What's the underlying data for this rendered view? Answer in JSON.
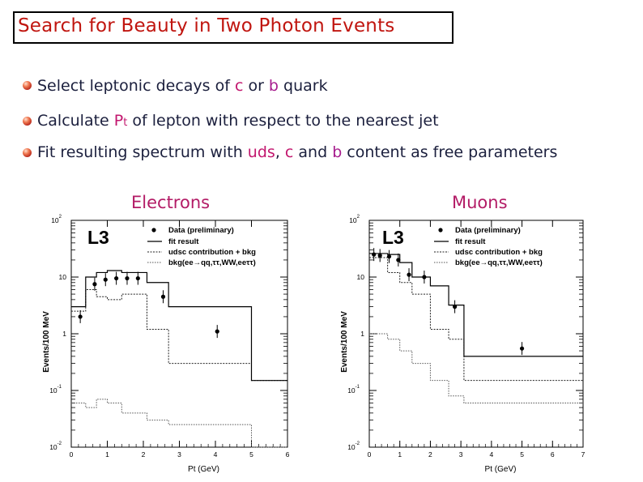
{
  "title": "Search for Beauty in Two Photon Events",
  "bullets": [
    {
      "pre": "Select leptonic decays of ",
      "h1": "c",
      "mid": " or ",
      "h2": "b",
      "post": " quark"
    },
    {
      "pre": "Calculate ",
      "h1": "P",
      "sub": "t",
      "post": " of lepton with respect to the nearest jet"
    },
    {
      "pre": "Fit resulting spectrum with ",
      "h1": "uds",
      "mid1": ", ",
      "h2": "c",
      "mid2": " and ",
      "h3": "b",
      "post": " content as free parameters"
    }
  ],
  "panels": {
    "electrons_label": "Electrons",
    "muons_label": "Muons"
  },
  "plot_text": {
    "logo": "L3",
    "legend_data": "Data (preliminary)",
    "legend_fit": "fit result",
    "legend_udsc": "udsc contribution + bkg",
    "legend_bkg": "bkg(ee→qq,ττ,WW,eeττ)",
    "ylabel": "Events/100 MeV",
    "xlabel": "Pt (GeV)",
    "ytick_labels": [
      "10^2",
      "10",
      "1",
      "10^-1",
      "10^-2"
    ]
  },
  "chart_data": [
    {
      "type": "histogram",
      "title": "Electrons",
      "xlabel": "Pt (GeV)",
      "ylabel": "Events/100 MeV",
      "log_y": true,
      "xlim": [
        0,
        6
      ],
      "ylim": [
        0.01,
        100
      ],
      "xticks": [
        0,
        1,
        2,
        3,
        4,
        5,
        6
      ],
      "data": {
        "x": [
          0.25,
          0.65,
          0.95,
          1.25,
          1.55,
          1.85,
          2.55,
          4.05
        ],
        "y": [
          2.0,
          7.5,
          9.0,
          9.5,
          9.5,
          9.5,
          4.5,
          1.1
        ]
      },
      "fit_result": {
        "edges": [
          0,
          0.4,
          0.7,
          1.0,
          1.4,
          2.1,
          2.7,
          5.0,
          6.0
        ],
        "values": [
          3.0,
          10.0,
          12.0,
          13.0,
          12.0,
          8.0,
          3.0,
          0.15
        ]
      },
      "udsc_bkg": {
        "edges": [
          0,
          0.4,
          0.7,
          1.0,
          1.4,
          2.1,
          2.7,
          5.0,
          6.0
        ],
        "values": [
          2.5,
          6.0,
          4.5,
          4.0,
          5.0,
          1.2,
          0.3,
          0.15
        ]
      },
      "bkg": {
        "edges": [
          0,
          0.4,
          0.7,
          1.0,
          1.4,
          2.1,
          2.7,
          5.0,
          6.0
        ],
        "values": [
          0.06,
          0.05,
          0.07,
          0.06,
          0.04,
          0.03,
          0.025,
          0.01
        ]
      }
    },
    {
      "type": "histogram",
      "title": "Muons",
      "xlabel": "Pt (GeV)",
      "ylabel": "Events/100 MeV",
      "log_y": true,
      "xlim": [
        0,
        7
      ],
      "ylim": [
        0.01,
        100
      ],
      "xticks": [
        0,
        1,
        2,
        3,
        4,
        5,
        6,
        7
      ],
      "data": {
        "x": [
          0.15,
          0.35,
          0.65,
          0.95,
          1.3,
          1.8,
          2.8,
          5.0
        ],
        "y": [
          25,
          24,
          23,
          20,
          11,
          10,
          3.0,
          0.55
        ]
      },
      "fit_result": {
        "edges": [
          0,
          0.6,
          1.0,
          1.4,
          2.0,
          2.6,
          3.1,
          7.0
        ],
        "values": [
          26,
          25,
          18,
          10,
          7,
          3.2,
          0.4
        ]
      },
      "udsc_bkg": {
        "edges": [
          0,
          0.6,
          1.0,
          1.4,
          2.0,
          2.6,
          3.1,
          7.0
        ],
        "values": [
          22,
          12,
          8,
          5,
          1.2,
          0.8,
          0.15
        ]
      },
      "bkg": {
        "edges": [
          0,
          0.6,
          1.0,
          1.4,
          2.0,
          2.6,
          3.1,
          7.0
        ],
        "values": [
          1.0,
          0.8,
          0.5,
          0.3,
          0.15,
          0.08,
          0.06
        ]
      }
    }
  ]
}
